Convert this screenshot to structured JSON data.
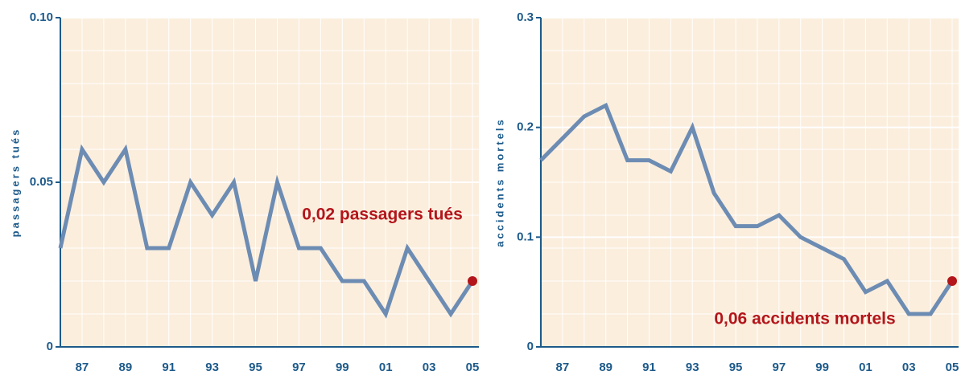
{
  "chart_data": [
    {
      "type": "line",
      "y_label": "passagers tués",
      "annotation": "0,02 passagers tués",
      "categories": [
        null,
        "87",
        null,
        "89",
        null,
        "91",
        null,
        "93",
        null,
        "95",
        null,
        "97",
        null,
        "99",
        null,
        "01",
        null,
        "03",
        null,
        "05"
      ],
      "values": [
        0.03,
        0.06,
        0.05,
        0.06,
        0.03,
        0.03,
        0.05,
        0.04,
        0.05,
        0.02,
        0.05,
        0.03,
        0.03,
        0.02,
        0.02,
        0.01,
        0.03,
        0.02,
        0.01,
        0.02
      ],
      "color": "#6d8cb3",
      "marker_color": "#b3151b",
      "ylim": [
        0,
        0.1
      ],
      "yticks": [
        0,
        0.05,
        {
          "value": 0.1,
          "label": "0.10"
        }
      ],
      "grid": true
    },
    {
      "type": "line",
      "y_label": "accidents mortels",
      "annotation": "0,06 accidents mortels",
      "categories": [
        null,
        "87",
        null,
        "89",
        null,
        "91",
        null,
        "93",
        null,
        "95",
        null,
        "97",
        null,
        "99",
        null,
        "01",
        null,
        "03",
        null,
        "05"
      ],
      "values": [
        0.17,
        0.19,
        0.21,
        0.22,
        0.17,
        0.17,
        0.16,
        0.2,
        0.14,
        0.11,
        0.11,
        0.12,
        0.1,
        0.09,
        0.08,
        0.05,
        0.06,
        0.03,
        0.03,
        0.06
      ],
      "color": "#6d8cb3",
      "marker_color": "#b3151b",
      "ylim": [
        0,
        0.3
      ],
      "yticks": [
        0,
        0.1,
        0.2,
        0.3
      ],
      "grid": true
    }
  ]
}
